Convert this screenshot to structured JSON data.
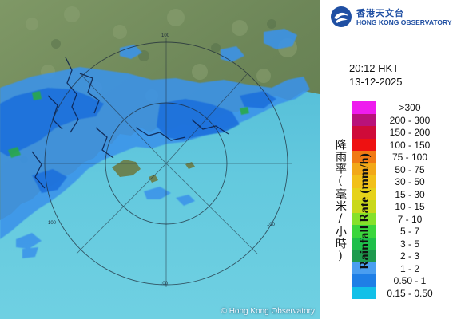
{
  "organization": {
    "name_cn": "香港天文台",
    "name_en": "HONG KONG OBSERVATORY",
    "logo_icon": "hko-logo-icon"
  },
  "observation": {
    "time": "20:12 HKT",
    "date": "13-12-2025"
  },
  "legend": {
    "axis_label_cn": "降雨率(毫米/小時)",
    "axis_label_en": "Rainfall Rate (mm/h)",
    "items": [
      {
        "label": ">300",
        "color": "#ee1cee"
      },
      {
        "label": "200 - 300",
        "color": "#b8127a"
      },
      {
        "label": "150 - 200",
        "color": "#cf0b39"
      },
      {
        "label": "100 - 150",
        "color": "#ee1111"
      },
      {
        "label": "75 - 100",
        "color": "#f07a14"
      },
      {
        "label": "50 - 75",
        "color": "#f2a818"
      },
      {
        "label": "30 - 50",
        "color": "#f2c019"
      },
      {
        "label": "15 - 30",
        "color": "#e6d21a"
      },
      {
        "label": "10 - 15",
        "color": "#c9d81b"
      },
      {
        "label": "7 - 10",
        "color": "#86e12a"
      },
      {
        "label": "5 - 7",
        "color": "#3bd63c"
      },
      {
        "label": "3 - 5",
        "color": "#1fbf4a"
      },
      {
        "label": "2 - 3",
        "color": "#1e9a4e"
      },
      {
        "label": "1 - 2",
        "color": "#4a9ef0"
      },
      {
        "label": "0.50 - 1",
        "color": "#1f7fe6"
      },
      {
        "label": "0.15 - 0.50",
        "color": "#12c0e8"
      }
    ]
  },
  "map": {
    "range_ring_label": "100",
    "copyright": "© Hong Kong Observatory",
    "land_color": "#6f8a5a",
    "sea_color": "#5ec6dc",
    "rain_light_color": "#2c8fe8",
    "rain_mid_color": "#1f6fdc",
    "rain_green_color": "#2aa94a",
    "border_color": "#0b1f4a"
  }
}
